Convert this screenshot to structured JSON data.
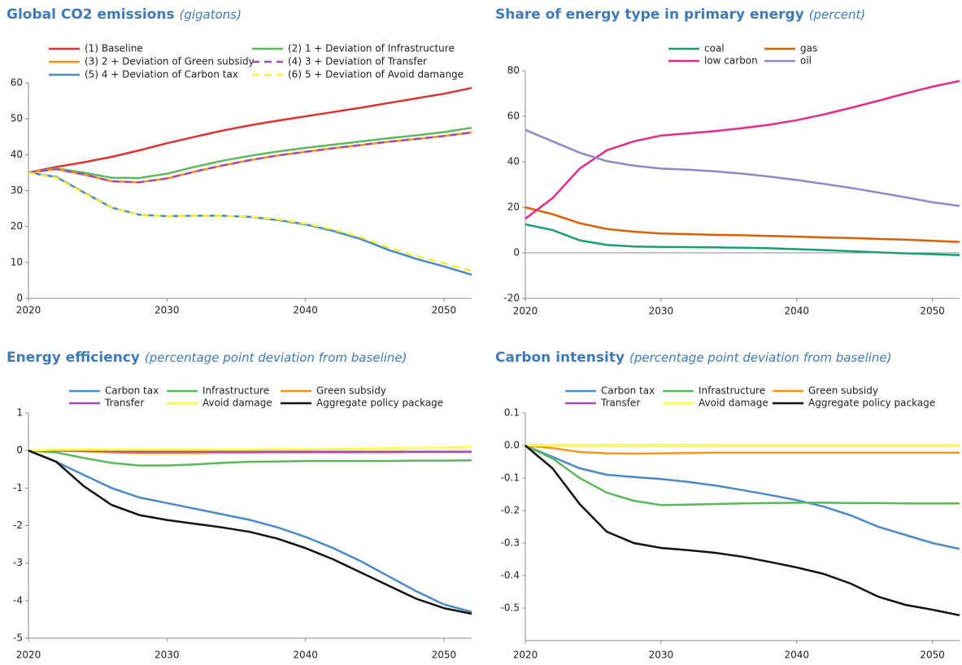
{
  "chart_data": [
    {
      "type": "line",
      "title": "Global CO2 emissions",
      "subtitle": "(gigatons)",
      "x": [
        2020,
        2022,
        2024,
        2026,
        2028,
        2030,
        2032,
        2034,
        2036,
        2038,
        2040,
        2042,
        2044,
        2046,
        2048,
        2050,
        2052
      ],
      "xlim": [
        2020,
        2052
      ],
      "xticks": [
        2020,
        2030,
        2040,
        2050
      ],
      "ylim": [
        0,
        60
      ],
      "yticks": [
        0,
        10,
        20,
        30,
        40,
        50,
        60
      ],
      "series": [
        {
          "name": "(1) Baseline",
          "color": "#e03131",
          "values": [
            35,
            36.6,
            37.9,
            39.4,
            41.2,
            43.2,
            45.0,
            46.7,
            48.2,
            49.5,
            50.7,
            51.9,
            53.1,
            54.4,
            55.7,
            57.0,
            58.6
          ]
        },
        {
          "name": "(2) 1 + Deviation of Infrastructure",
          "color": "#5cb85c",
          "values": [
            35,
            36.2,
            35,
            33.6,
            33.5,
            34.7,
            36.6,
            38.3,
            39.7,
            40.9,
            41.9,
            42.8,
            43.7,
            44.6,
            45.4,
            46.3,
            47.5
          ]
        },
        {
          "name": "(3) 2 + Deviation of Green subsidy",
          "color": "#ff8c1a",
          "values": [
            35,
            36,
            34.5,
            32.6,
            32.3,
            33.4,
            35.3,
            37,
            38.5,
            39.8,
            40.8,
            41.8,
            42.7,
            43.6,
            44.4,
            45.2,
            46.2
          ]
        },
        {
          "name": "(4) 3 + Deviation of Transfer",
          "color": "#9b4fa8",
          "style": "dashed",
          "values": [
            35,
            36,
            34.5,
            32.6,
            32.3,
            33.4,
            35.3,
            37,
            38.5,
            39.8,
            40.8,
            41.8,
            42.7,
            43.6,
            44.4,
            45.2,
            46.2
          ]
        },
        {
          "name": "(5) 4 + Deviation of Carbon tax",
          "color": "#4a8ac4",
          "values": [
            35,
            33.8,
            29.5,
            25.3,
            23.3,
            22.9,
            23,
            23,
            22.7,
            21.8,
            20.6,
            18.8,
            16.5,
            13.5,
            11,
            8.9,
            6.6
          ]
        },
        {
          "name": "(6) 5 + Deviation of Avoid damange",
          "color": "#f5ef3a",
          "style": "dashed",
          "values": [
            35,
            33.6,
            29.3,
            25.2,
            23.3,
            22.9,
            23,
            23,
            22.7,
            22,
            20.8,
            19.2,
            17,
            14.2,
            11.8,
            9.8,
            7.6
          ]
        }
      ]
    },
    {
      "type": "line",
      "title": "Share of energy type in primary energy",
      "subtitle": "(percent)",
      "x": [
        2020,
        2022,
        2024,
        2026,
        2028,
        2030,
        2032,
        2034,
        2036,
        2038,
        2040,
        2042,
        2044,
        2046,
        2048,
        2050,
        2052
      ],
      "xlim": [
        2020,
        2052
      ],
      "xticks": [
        2020,
        2030,
        2040,
        2050
      ],
      "ylim": [
        -20,
        80
      ],
      "yticks": [
        -20,
        0,
        20,
        40,
        60,
        80
      ],
      "zero_line": true,
      "series": [
        {
          "name": "coal",
          "color": "#1a9e77",
          "values": [
            12.5,
            10,
            5.5,
            3.5,
            2.8,
            2.6,
            2.5,
            2.4,
            2.2,
            2,
            1.6,
            1.2,
            0.7,
            0.2,
            -0.2,
            -0.6,
            -1
          ]
        },
        {
          "name": "gas",
          "color": "#d95f02",
          "values": [
            20,
            17,
            13,
            10.5,
            9.3,
            8.5,
            8.2,
            7.9,
            7.7,
            7.4,
            7.1,
            6.8,
            6.5,
            6.1,
            5.8,
            5.3,
            4.8
          ]
        },
        {
          "name": "low carbon",
          "color": "#e7298a",
          "values": [
            15,
            24,
            37,
            45,
            49,
            51.5,
            52.5,
            53.5,
            54.8,
            56.3,
            58.3,
            60.8,
            63.7,
            66.8,
            70,
            73,
            75.5
          ]
        },
        {
          "name": "oil",
          "color": "#8e88c6",
          "values": [
            54,
            49,
            44,
            40.3,
            38.3,
            37,
            36.5,
            35.8,
            34.8,
            33.5,
            32,
            30.3,
            28.5,
            26.5,
            24.4,
            22.2,
            20.6
          ]
        }
      ]
    },
    {
      "type": "line",
      "title": "Energy efficiency",
      "subtitle": "(percentage point deviation from baseline)",
      "x": [
        2020,
        2022,
        2024,
        2026,
        2028,
        2030,
        2032,
        2034,
        2036,
        2038,
        2040,
        2042,
        2044,
        2046,
        2048,
        2050,
        2052
      ],
      "xlim": [
        2020,
        2052
      ],
      "xticks": [
        2020,
        2030,
        2040,
        2050
      ],
      "ylim": [
        -5,
        1
      ],
      "yticks": [
        -5,
        -4,
        -3,
        -2,
        -1,
        0,
        1
      ],
      "series": [
        {
          "name": "Carbon tax",
          "color": "#4a8ac4",
          "values": [
            0,
            -0.3,
            -0.65,
            -1.0,
            -1.25,
            -1.4,
            -1.55,
            -1.7,
            -1.85,
            -2.05,
            -2.3,
            -2.6,
            -2.95,
            -3.35,
            -3.75,
            -4.1,
            -4.3
          ]
        },
        {
          "name": "Infrastructure",
          "color": "#5cb85c",
          "values": [
            0,
            -0.05,
            -0.2,
            -0.33,
            -0.4,
            -0.4,
            -0.37,
            -0.33,
            -0.3,
            -0.29,
            -0.28,
            -0.28,
            -0.28,
            -0.28,
            -0.27,
            -0.27,
            -0.26
          ]
        },
        {
          "name": "Green subsidy",
          "color": "#f7941d",
          "values": [
            0,
            0,
            -0.02,
            -0.05,
            -0.07,
            -0.07,
            -0.07,
            -0.06,
            -0.06,
            -0.05,
            -0.05,
            -0.05,
            -0.05,
            -0.05,
            -0.04,
            -0.04,
            -0.04
          ]
        },
        {
          "name": "Transfer",
          "color": "#a050b0",
          "values": [
            0,
            0,
            -0.01,
            -0.02,
            -0.03,
            -0.03,
            -0.03,
            -0.03,
            -0.03,
            -0.03,
            -0.03,
            -0.03,
            -0.03,
            -0.03,
            -0.03,
            -0.03,
            -0.03
          ]
        },
        {
          "name": "Avoid damage",
          "color": "#ffff33",
          "values": [
            0,
            0.02,
            0.02,
            0.02,
            0.02,
            0.02,
            0.02,
            0.02,
            0.02,
            0.03,
            0.03,
            0.04,
            0.05,
            0.06,
            0.07,
            0.08,
            0.1
          ]
        },
        {
          "name": "Aggregate policy package",
          "color": "#111111",
          "values": [
            0,
            -0.3,
            -0.95,
            -1.45,
            -1.72,
            -1.85,
            -1.95,
            -2.05,
            -2.17,
            -2.35,
            -2.6,
            -2.9,
            -3.25,
            -3.6,
            -3.95,
            -4.2,
            -4.35
          ]
        }
      ]
    },
    {
      "type": "line",
      "title": "Carbon intensity",
      "subtitle": "(percentage point deviation from baseline)",
      "x": [
        2020,
        2022,
        2024,
        2026,
        2028,
        2030,
        2032,
        2034,
        2036,
        2038,
        2040,
        2042,
        2044,
        2046,
        2048,
        2050,
        2052
      ],
      "xlim": [
        2020,
        2052
      ],
      "xticks": [
        2020,
        2030,
        2040,
        2050
      ],
      "ylim": [
        -0.6,
        0.1
      ],
      "yticks": [
        -0.5,
        -0.4,
        -0.3,
        -0.2,
        -0.1,
        {
          "value": 0,
          "label": "0.0"
        },
        0.1
      ],
      "series": [
        {
          "name": "Carbon tax",
          "color": "#4a8ac4",
          "values": [
            0,
            -0.035,
            -0.07,
            -0.09,
            -0.097,
            -0.103,
            -0.112,
            -0.123,
            -0.137,
            -0.152,
            -0.168,
            -0.188,
            -0.215,
            -0.25,
            -0.275,
            -0.3,
            -0.318
          ]
        },
        {
          "name": "Infrastructure",
          "color": "#5cb85c",
          "values": [
            0,
            -0.04,
            -0.1,
            -0.145,
            -0.17,
            -0.183,
            -0.182,
            -0.18,
            -0.178,
            -0.177,
            -0.176,
            -0.176,
            -0.177,
            -0.177,
            -0.178,
            -0.178,
            -0.178
          ]
        },
        {
          "name": "Green subsidy",
          "color": "#f7941d",
          "values": [
            0,
            -0.008,
            -0.02,
            -0.024,
            -0.025,
            -0.024,
            -0.023,
            -0.022,
            -0.022,
            -0.022,
            -0.022,
            -0.022,
            -0.022,
            -0.022,
            -0.022,
            -0.022,
            -0.022
          ]
        },
        {
          "name": "Transfer",
          "color": "#a050b0",
          "values": [
            0,
            0,
            0,
            0,
            0,
            0,
            0,
            0,
            0,
            0,
            0,
            0,
            0,
            0,
            0,
            0,
            0
          ]
        },
        {
          "name": "Avoid damage",
          "color": "#ffff33",
          "values": [
            0,
            0,
            0,
            0,
            0,
            0,
            0,
            0,
            0,
            0,
            0,
            0,
            0,
            0,
            0,
            0,
            0
          ]
        },
        {
          "name": "Aggregate policy package",
          "color": "#111111",
          "values": [
            0,
            -0.07,
            -0.18,
            -0.265,
            -0.3,
            -0.315,
            -0.322,
            -0.33,
            -0.342,
            -0.358,
            -0.375,
            -0.395,
            -0.425,
            -0.465,
            -0.49,
            -0.505,
            -0.522
          ]
        }
      ]
    }
  ]
}
